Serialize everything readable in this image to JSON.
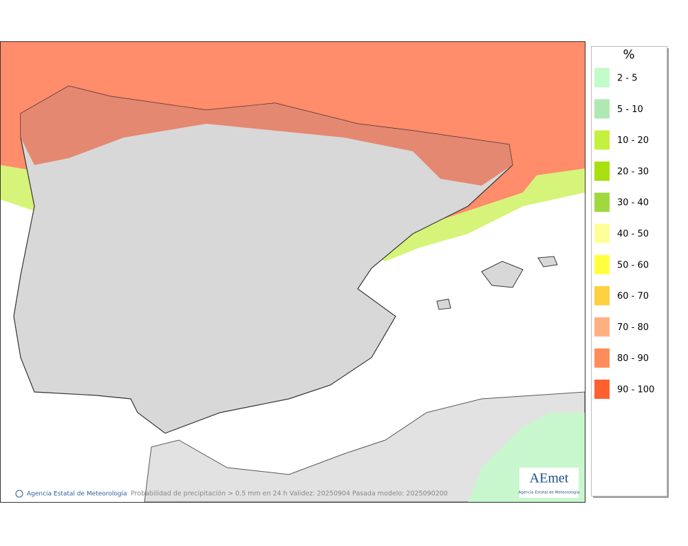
{
  "legend": {
    "title": "%",
    "items": [
      {
        "label": "2 - 5",
        "color": "#c2fcc8"
      },
      {
        "label": "5 - 10",
        "color": "#b0e8b4"
      },
      {
        "label": "10 - 20",
        "color": "#c4f040"
      },
      {
        "label": "20 - 30",
        "color": "#a8e010"
      },
      {
        "label": "30 - 40",
        "color": "#a0d840"
      },
      {
        "label": "40 - 50",
        "color": "#ffff98"
      },
      {
        "label": "50 - 60",
        "color": "#ffff40"
      },
      {
        "label": "60 - 70",
        "color": "#ffd040"
      },
      {
        "label": "70 - 80",
        "color": "#ffb080"
      },
      {
        "label": "80 - 90",
        "color": "#ff8c5a"
      },
      {
        "label": "90 - 100",
        "color": "#ff6030"
      }
    ]
  },
  "footer": {
    "credit": "Agencia Estatal de Meteorología",
    "caption": "Probabilidad de precipitación > 0.5 mm en 24 h Validez: 20250904 Pasada modelo: 2025090200"
  },
  "logo": {
    "text": "AEmet",
    "subtitle": "Agencia Estatal de Meteorología"
  }
}
